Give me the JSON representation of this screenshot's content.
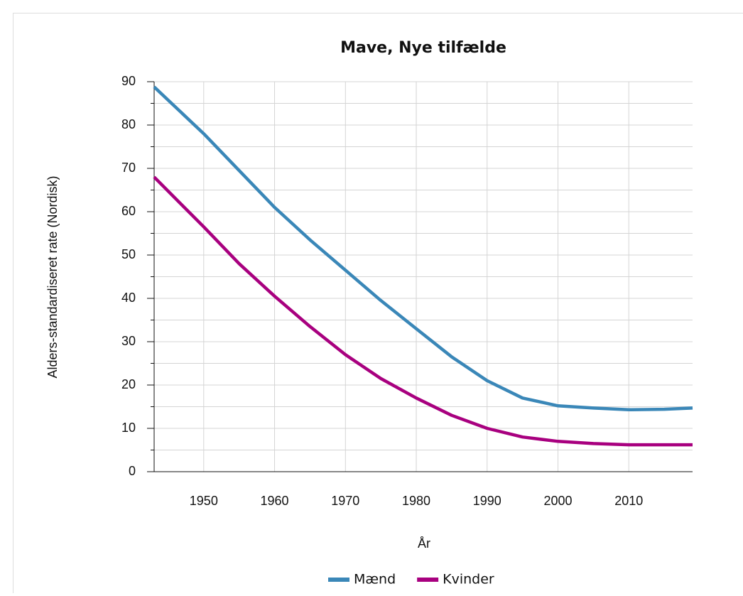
{
  "chart_data": {
    "type": "line",
    "title": "Mave, Nye tilfælde",
    "x_label": "År",
    "y_label": "Alders-standardiseret rate (Nordisk)",
    "x": [
      1943,
      1950,
      1955,
      1960,
      1965,
      1970,
      1975,
      1980,
      1985,
      1990,
      1995,
      2000,
      2005,
      2010,
      2015,
      2019
    ],
    "series": [
      {
        "name": "Mænd",
        "color": "#3a87b8",
        "values": [
          88.8,
          78,
          69.5,
          61,
          53.5,
          46.5,
          39.5,
          33,
          26.5,
          21,
          17,
          15.2,
          14.7,
          14.3,
          14.4,
          14.7
        ]
      },
      {
        "name": "Kvinder",
        "color": "#a8007f",
        "values": [
          68,
          56.5,
          48,
          40.5,
          33.5,
          27,
          21.5,
          17,
          13,
          10,
          8,
          7,
          6.5,
          6.2,
          6.2,
          6.2
        ]
      }
    ],
    "xlim": [
      1943,
      2019
    ],
    "xticks": [
      1950,
      1960,
      1970,
      1980,
      1990,
      2000,
      2010
    ],
    "ylim": [
      0,
      90
    ],
    "yticks": [
      0,
      10,
      20,
      30,
      40,
      50,
      60,
      70,
      80,
      90
    ],
    "yminor_ticks": [
      5,
      15,
      25,
      35,
      45,
      55,
      65,
      75,
      85
    ],
    "grid": true
  }
}
